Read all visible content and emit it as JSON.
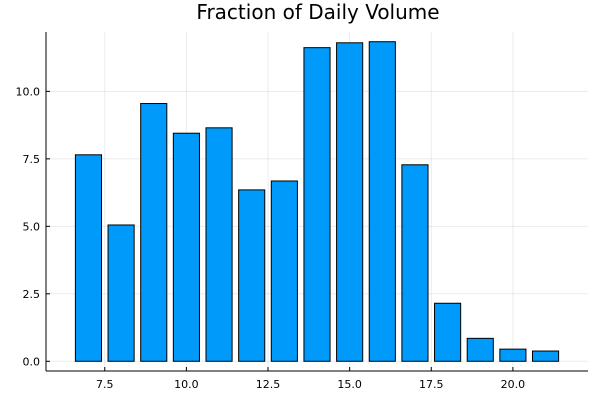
{
  "chart_data": {
    "type": "bar",
    "title": "Fraction of Daily Volume",
    "xlabel": "",
    "ylabel": "",
    "x": [
      7,
      8,
      9,
      10,
      11,
      12,
      13,
      14,
      15,
      16,
      17,
      18,
      19,
      20,
      21
    ],
    "values": [
      7.65,
      5.05,
      9.55,
      8.45,
      8.65,
      6.35,
      6.68,
      11.62,
      11.8,
      11.84,
      7.28,
      2.15,
      0.85,
      0.45,
      0.38
    ],
    "xlim": [
      5.7,
      22.3
    ],
    "ylim": [
      -0.36,
      12.2
    ],
    "xticks": [
      7.5,
      10.0,
      12.5,
      15.0,
      17.5,
      20.0
    ],
    "xtick_labels": [
      "7.5",
      "10.0",
      "12.5",
      "15.0",
      "17.5",
      "20.0"
    ],
    "yticks": [
      0.0,
      2.5,
      5.0,
      7.5,
      10.0
    ],
    "ytick_labels": [
      "0.0",
      "2.5",
      "5.0",
      "7.5",
      "10.0"
    ],
    "grid": true,
    "legend": "none",
    "bar_color": "#009AFA",
    "bar_width": 0.8
  }
}
